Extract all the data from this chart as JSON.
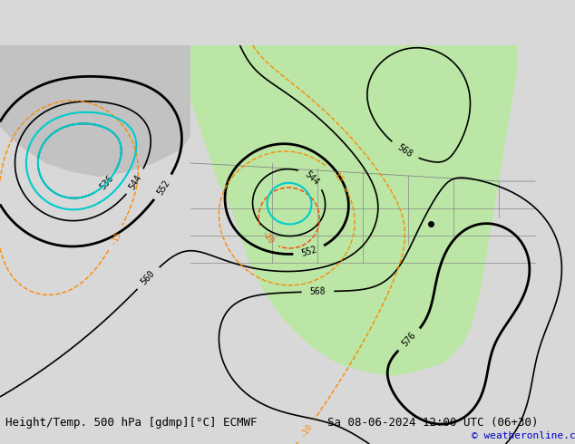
{
  "title_left": "Height/Temp. 500 hPa [gdmp][°C] ECMWF",
  "title_right": "Sa 08-06-2024 12:00 UTC (06+30)",
  "copyright": "© weatheronline.co.uk",
  "bg_color": "#d8d8d8",
  "map_bg": "#e8e8e8",
  "green_fill": "#b8e8a0",
  "font_size_title": 9,
  "font_size_labels": 7.5,
  "font_size_copyright": 8
}
